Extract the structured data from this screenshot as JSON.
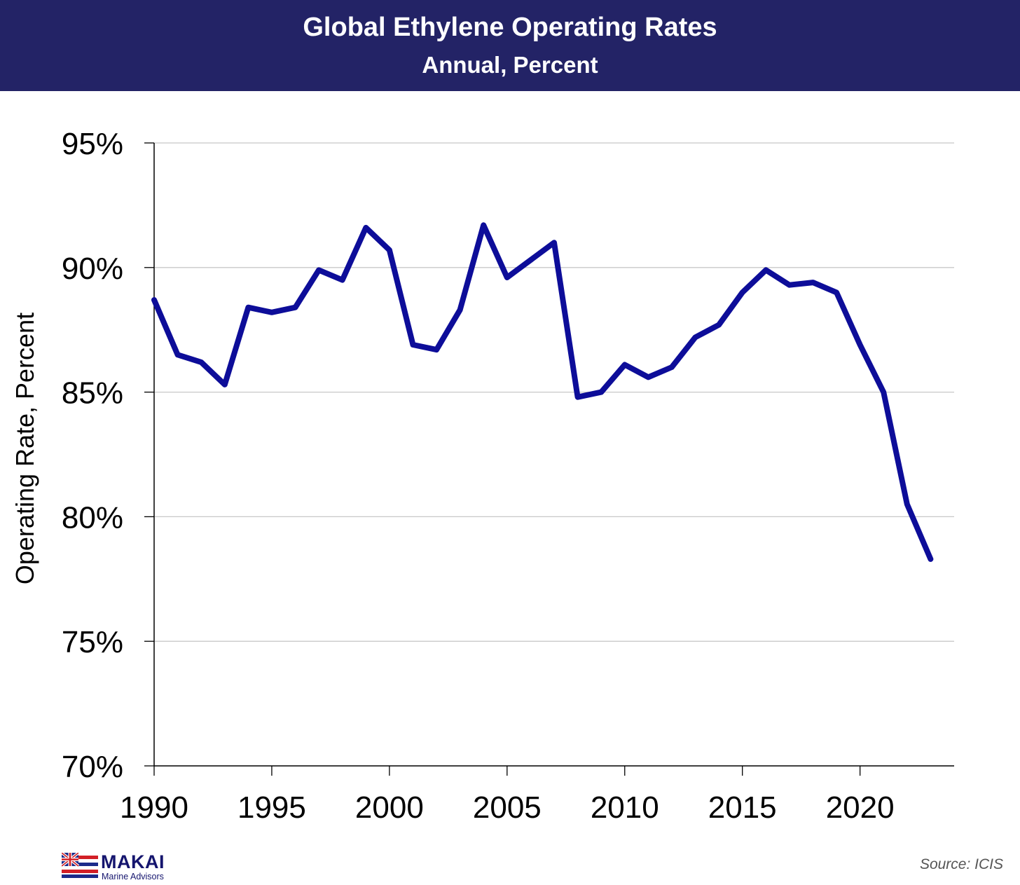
{
  "header": {
    "title": "Global Ethylene Operating Rates",
    "subtitle": "Annual, Percent"
  },
  "chart_data": {
    "type": "line",
    "title": "Global Ethylene Operating Rates",
    "subtitle": "Annual, Percent",
    "xlabel": "",
    "ylabel": "Operating Rate,  Percent",
    "xlim": [
      1990,
      2024
    ],
    "ylim": [
      70,
      95
    ],
    "x_ticks": [
      1990,
      1995,
      2000,
      2005,
      2010,
      2015,
      2020
    ],
    "x_tick_labels": [
      "1990",
      "1995",
      "2000",
      "2005",
      "2010",
      "2015",
      "2020"
    ],
    "y_ticks": [
      70,
      75,
      80,
      85,
      90,
      95
    ],
    "y_tick_labels": [
      "70%",
      "75%",
      "80%",
      "85%",
      "90%",
      "95%"
    ],
    "grid": "horizontal",
    "legend": "none",
    "series": [
      {
        "color": "#0d0d99",
        "x": [
          1990,
          1991,
          1992,
          1993,
          1994,
          1995,
          1996,
          1997,
          1998,
          1999,
          2000,
          2001,
          2002,
          2003,
          2004,
          2005,
          2006,
          2007,
          2008,
          2009,
          2010,
          2011,
          2012,
          2013,
          2014,
          2015,
          2016,
          2017,
          2018,
          2019,
          2020,
          2021,
          2022,
          2023
        ],
        "values": [
          88.7,
          86.5,
          86.2,
          85.3,
          88.4,
          88.2,
          88.4,
          89.9,
          89.5,
          91.6,
          90.7,
          86.9,
          86.7,
          88.3,
          91.7,
          89.6,
          90.3,
          91.0,
          84.8,
          85.0,
          86.1,
          85.6,
          86.0,
          87.2,
          87.7,
          89.0,
          89.9,
          89.3,
          89.4,
          89.0,
          86.9,
          85.0,
          80.5,
          78.3
        ]
      }
    ]
  },
  "logo": {
    "brand": "MAKAI",
    "tagline": "Marine Advisors",
    "icon": "hawaii-flag-icon"
  },
  "source": "Source: ICIS"
}
